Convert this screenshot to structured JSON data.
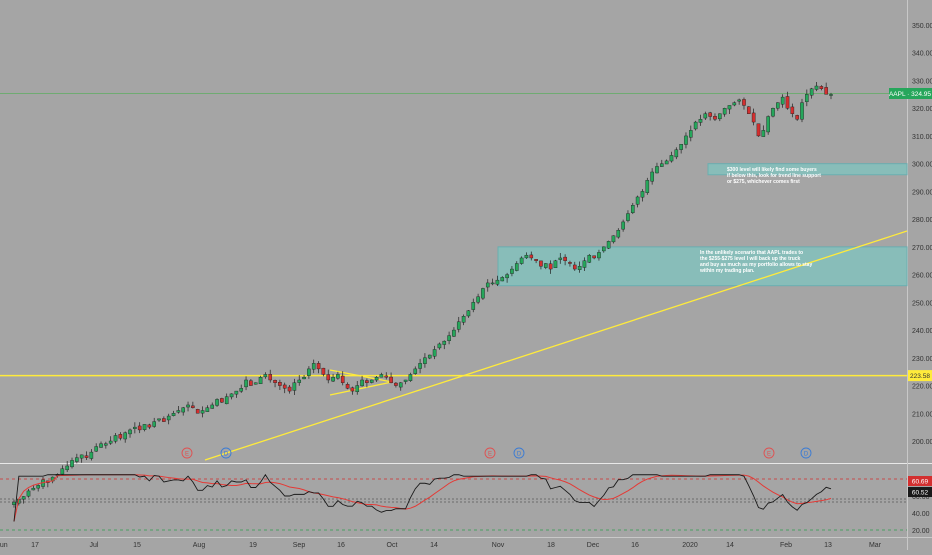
{
  "chart_data": {
    "type": "candlestick",
    "ticker_label": "AAPL · 324.95",
    "last_price": 324.95,
    "level_label": "223.58",
    "level_price": 223.58,
    "y_ticks": [
      "350.00",
      "340.00",
      "330.00",
      "320.00",
      "310.00",
      "300.00",
      "290.00",
      "280.00",
      "270.00",
      "260.00",
      "250.00",
      "240.00",
      "230.00",
      "220.00",
      "210.00",
      "200.00"
    ],
    "y_tick_values": [
      350,
      340,
      330,
      320,
      310,
      300,
      290,
      280,
      270,
      260,
      250,
      240,
      230,
      220,
      210,
      200
    ],
    "x_ticks": [
      "Jun",
      "17",
      "Jul",
      "15",
      "Aug",
      "19",
      "Sep",
      "16",
      "Oct",
      "14",
      "Nov",
      "18",
      "Dec",
      "16",
      "2020",
      "14",
      "Feb",
      "13",
      "Mar"
    ],
    "ylim": [
      193,
      353
    ],
    "zones": [
      {
        "from": 296,
        "to": 300
      },
      {
        "from": 256,
        "to": 270
      }
    ],
    "annotations": [
      {
        "text": "$300 level will likely find some buyers\nif below this, look for trend line support\nor $275, whichever comes first"
      },
      {
        "text": "In the unlikely scenario that AAPL trades to\nthe $255-$275 level I will back up the truck\nand buy as much as my portfolio allows to stay\nwithin my trading plan."
      }
    ],
    "events": [
      {
        "label": "E"
      },
      {
        "label": "D"
      },
      {
        "label": "E"
      },
      {
        "label": "D"
      },
      {
        "label": "E"
      },
      {
        "label": "D"
      }
    ],
    "candles_close": [
      178,
      179,
      180,
      182,
      183,
      184,
      186,
      185,
      187,
      188,
      190,
      191,
      193,
      194,
      195,
      194,
      196,
      198,
      199,
      199,
      200,
      202,
      201,
      203,
      204,
      205,
      204,
      206,
      205,
      207,
      208,
      207,
      209,
      210,
      211,
      212,
      213,
      212,
      210,
      211,
      212,
      213,
      215,
      214,
      216,
      217,
      218,
      219,
      222,
      220,
      221,
      223,
      224,
      222,
      221,
      220,
      219,
      218,
      221,
      222,
      223,
      226,
      228,
      226,
      224,
      222,
      223,
      224,
      221,
      219,
      218,
      220,
      222,
      221,
      222,
      223,
      224,
      223,
      221,
      220,
      221,
      222,
      224,
      226,
      228,
      230,
      231,
      233,
      235,
      236,
      238,
      240,
      243,
      245,
      247,
      250,
      252,
      255,
      257,
      257,
      258,
      259,
      260,
      262,
      264,
      266,
      267,
      266,
      265,
      263,
      264,
      262,
      265,
      266,
      265,
      264,
      262,
      263,
      265,
      267,
      266,
      268,
      270,
      272,
      274,
      276,
      279,
      282,
      285,
      288,
      290,
      294,
      297,
      299,
      300,
      301,
      303,
      305,
      307,
      310,
      312,
      315,
      316,
      318,
      317,
      316,
      318,
      320,
      321,
      322,
      323,
      321,
      318,
      315,
      310,
      312,
      317,
      320,
      322,
      324,
      320,
      318,
      316,
      322,
      325,
      327,
      328,
      327,
      325,
      324.95
    ],
    "rsi": {
      "ylim": [
        10,
        90
      ],
      "ticks": [
        "80.00",
        "60.00",
        "40.00",
        "20.00"
      ],
      "tick_values": [
        80,
        60,
        40,
        20
      ],
      "upper": 80,
      "lower": 20,
      "value_label": "60.69",
      "ma_label": "60.52",
      "rsi_value": 60.69,
      "ma_value": 60.52
    }
  }
}
